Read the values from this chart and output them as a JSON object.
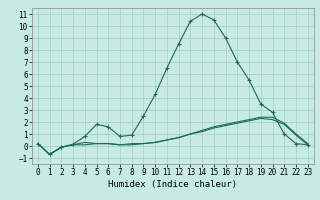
{
  "xlabel": "Humidex (Indice chaleur)",
  "xlim": [
    -0.5,
    23.5
  ],
  "ylim": [
    -1.5,
    11.5
  ],
  "yticks": [
    -1,
    0,
    1,
    2,
    3,
    4,
    5,
    6,
    7,
    8,
    9,
    10,
    11
  ],
  "xticks": [
    0,
    1,
    2,
    3,
    4,
    5,
    6,
    7,
    8,
    9,
    10,
    11,
    12,
    13,
    14,
    15,
    16,
    17,
    18,
    19,
    20,
    21,
    22,
    23
  ],
  "bg_color": "#c8eae4",
  "grid_color": "#a0ccc4",
  "line_color": "#1a6b5a",
  "line1_x": [
    0,
    1,
    2,
    3,
    4,
    5,
    6,
    7,
    8,
    9,
    10,
    11,
    12,
    13,
    14,
    15,
    16,
    17,
    18,
    19,
    20,
    21,
    22,
    23
  ],
  "line1_y": [
    0.2,
    -0.7,
    -0.1,
    0.1,
    0.3,
    0.2,
    0.2,
    0.1,
    0.2,
    0.2,
    0.3,
    0.5,
    0.7,
    1.0,
    1.3,
    1.6,
    1.8,
    2.0,
    2.2,
    2.4,
    2.4,
    1.9,
    1.0,
    0.2
  ],
  "line2_x": [
    0,
    1,
    2,
    3,
    4,
    5,
    6,
    7,
    8,
    9,
    10,
    11,
    12,
    13,
    14,
    15,
    16,
    17,
    18,
    19,
    20,
    21,
    22,
    23
  ],
  "line2_y": [
    0.2,
    -0.7,
    -0.1,
    0.15,
    0.8,
    1.8,
    1.6,
    0.8,
    0.9,
    2.5,
    4.3,
    6.5,
    8.5,
    10.4,
    11.0,
    10.5,
    9.0,
    7.0,
    5.5,
    3.5,
    2.8,
    1.0,
    0.2,
    0.1
  ],
  "line3_x": [
    0,
    1,
    2,
    3,
    4,
    5,
    6,
    7,
    8,
    9,
    10,
    11,
    12,
    13,
    14,
    15,
    16,
    17,
    18,
    19,
    20,
    21,
    22,
    23
  ],
  "line3_y": [
    0.2,
    -0.7,
    -0.1,
    0.1,
    0.1,
    0.2,
    0.2,
    0.1,
    0.1,
    0.2,
    0.3,
    0.5,
    0.7,
    1.0,
    1.2,
    1.5,
    1.7,
    1.9,
    2.1,
    2.3,
    2.2,
    1.8,
    0.9,
    0.1
  ],
  "tick_fontsize": 5.5,
  "xlabel_fontsize": 6.5
}
